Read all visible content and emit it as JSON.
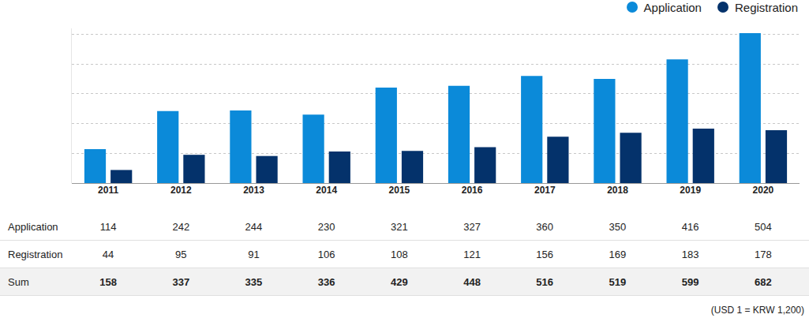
{
  "chart_data": {
    "type": "bar",
    "categories": [
      "2011",
      "2012",
      "2013",
      "2014",
      "2015",
      "2016",
      "2017",
      "2018",
      "2019",
      "2020"
    ],
    "series": [
      {
        "name": "Application",
        "color": "#0b8ad9",
        "values": [
          114,
          242,
          244,
          230,
          321,
          327,
          360,
          350,
          416,
          504
        ]
      },
      {
        "name": "Registration",
        "color": "#04326b",
        "values": [
          44,
          95,
          91,
          106,
          108,
          121,
          156,
          169,
          183,
          178
        ]
      }
    ],
    "ylim": [
      0,
      520
    ],
    "yticks": [
      0,
      100,
      200,
      300,
      400,
      500
    ],
    "grid": true,
    "legend": "top right",
    "tick_labels": "x"
  },
  "table": {
    "sum_row": {
      "label": "Sum",
      "values": [
        158,
        337,
        335,
        336,
        429,
        448,
        516,
        519,
        599,
        682
      ]
    }
  },
  "note": "(USD 1 = KRW 1,200)"
}
